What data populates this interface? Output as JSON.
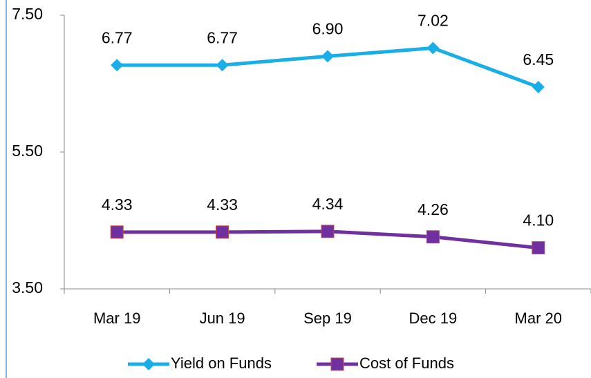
{
  "chart_data": {
    "type": "line",
    "categories": [
      "Mar 19",
      "Jun 19",
      "Sep 19",
      "Dec 19",
      "Mar 20"
    ],
    "series": [
      {
        "name": "Yield on Funds",
        "color": "#1aaee8",
        "marker": "diamond",
        "values": [
          6.77,
          6.77,
          6.9,
          7.02,
          6.45
        ],
        "value_labels": [
          "6.77",
          "6.77",
          "6.90",
          "7.02",
          "6.45"
        ]
      },
      {
        "name": "Cost of Funds",
        "color": "#7030a0",
        "marker": "square",
        "values": [
          4.33,
          4.33,
          4.34,
          4.26,
          4.1
        ],
        "value_labels": [
          "4.33",
          "4.33",
          "4.34",
          "4.26",
          "4.10"
        ]
      }
    ],
    "ylim": [
      3.5,
      7.5
    ],
    "yticks": [
      {
        "value": 3.5,
        "label": "3.50"
      },
      {
        "value": 5.5,
        "label": "5.50"
      },
      {
        "value": 7.5,
        "label": "7.50"
      }
    ],
    "legend": "bottom"
  }
}
